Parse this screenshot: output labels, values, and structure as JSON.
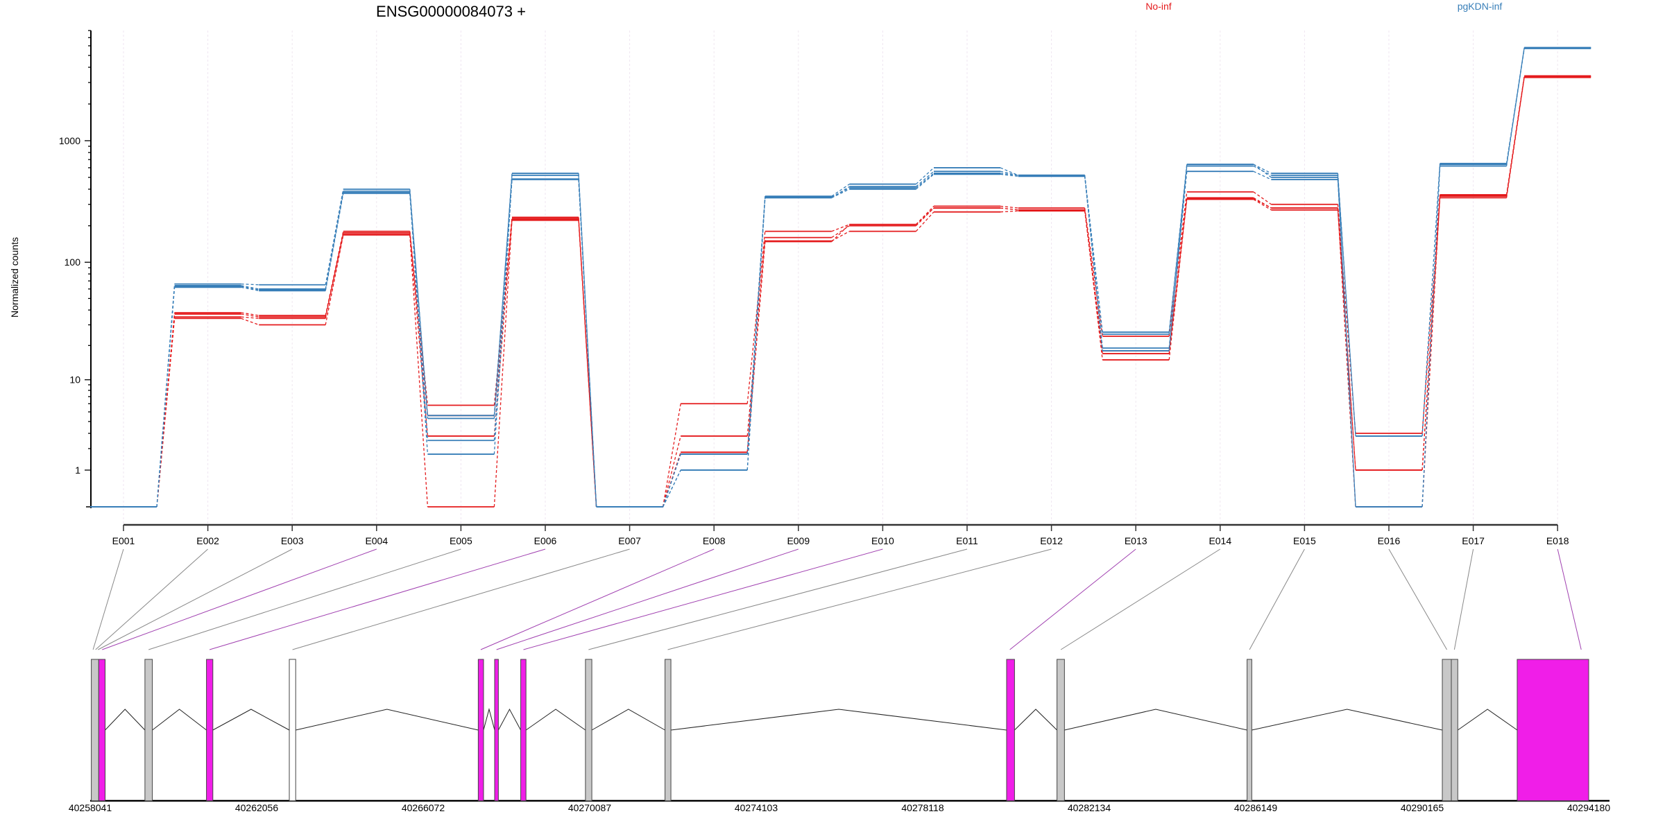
{
  "chart_data": {
    "type": "line",
    "title": "ENSG00000084073 +",
    "xlabel": "",
    "ylabel": "Normalized counts",
    "yscale": "log10(x+1)",
    "ylim": [
      0,
      8000
    ],
    "yticks": [
      1,
      10,
      100,
      1000
    ],
    "legend": {
      "placement": "top-right",
      "entries": [
        {
          "name": "No-inf",
          "color": "#e41a1c"
        },
        {
          "name": "pgKDN-inf",
          "color": "#377eb8"
        }
      ]
    },
    "categories": [
      "E001",
      "E002",
      "E003",
      "E004",
      "E005",
      "E006",
      "E007",
      "E008",
      "E009",
      "E010",
      "E011",
      "E012",
      "E013",
      "E014",
      "E015",
      "E016",
      "E017",
      "E018"
    ],
    "series": [
      {
        "name": "No-inf",
        "color": "#e41a1c",
        "replicates": [
          [
            0,
            38,
            36,
            180,
            5.8,
            235,
            0,
            6,
            180,
            205,
            290,
            280,
            24,
            380,
            300,
            3,
            360,
            3400
          ],
          [
            0,
            37,
            35,
            175,
            4.6,
            230,
            0,
            2.8,
            160,
            200,
            280,
            270,
            18,
            340,
            280,
            1,
            350,
            3350
          ],
          [
            0,
            35,
            34,
            170,
            2.8,
            225,
            0,
            1.8,
            150,
            180,
            260,
            265,
            17,
            330,
            270,
            1,
            340,
            3300
          ],
          [
            0,
            34,
            30,
            168,
            0,
            222,
            0,
            1.8,
            148,
            205,
            280,
            270,
            15,
            335,
            280,
            0,
            355,
            3360
          ]
        ]
      },
      {
        "name": "pgKDN-inf",
        "color": "#377eb8",
        "replicates": [
          [
            0,
            66,
            65,
            400,
            4.3,
            540,
            0,
            1.7,
            350,
            440,
            600,
            520,
            26,
            640,
            540,
            2.8,
            650,
            5800
          ],
          [
            0,
            64,
            60,
            385,
            4.6,
            520,
            0,
            1.7,
            340,
            420,
            560,
            520,
            25,
            620,
            520,
            2.8,
            640,
            5750
          ],
          [
            0,
            62,
            58,
            370,
            2.5,
            480,
            0,
            1.0,
            340,
            400,
            530,
            510,
            19,
            560,
            480,
            0,
            620,
            5800
          ],
          [
            0,
            63,
            59,
            375,
            1.7,
            485,
            0,
            1.0,
            345,
            410,
            540,
            520,
            18,
            640,
            500,
            0,
            640,
            5700
          ]
        ]
      }
    ],
    "gene_model": {
      "axis_labels": [
        "40258041",
        "40262056",
        "40266072",
        "40270087",
        "40274103",
        "40278118",
        "40282134",
        "40286149",
        "40290165",
        "40294180"
      ],
      "range": [
        40258041,
        40294180
      ],
      "exons": [
        {
          "start": 40258068,
          "end": 40258247,
          "type": "normal",
          "bins": [
            "E001",
            "E002",
            "E003"
          ]
        },
        {
          "start": 40258247,
          "end": 40258401,
          "type": "significant",
          "bins": [
            "E004"
          ]
        },
        {
          "start": 40259361,
          "end": 40259540,
          "type": "normal",
          "bins": [
            "E005"
          ]
        },
        {
          "start": 40260845,
          "end": 40260999,
          "type": "significant",
          "bins": [
            "E006"
          ]
        },
        {
          "start": 40262843,
          "end": 40262997,
          "type": "unexpressed",
          "bins": [
            "E007"
          ]
        },
        {
          "start": 40267400,
          "end": 40267527,
          "type": "significant",
          "bins": [
            "E008"
          ]
        },
        {
          "start": 40267795,
          "end": 40267885,
          "type": "significant",
          "bins": [
            "E009"
          ]
        },
        {
          "start": 40268424,
          "end": 40268551,
          "type": "significant",
          "bins": [
            "E010"
          ]
        },
        {
          "start": 40269985,
          "end": 40270139,
          "type": "normal",
          "bins": [
            "E011"
          ]
        },
        {
          "start": 40271904,
          "end": 40272046,
          "type": "normal",
          "bins": [
            "E012"
          ]
        },
        {
          "start": 40280142,
          "end": 40280333,
          "type": "significant",
          "bins": [
            "E013"
          ]
        },
        {
          "start": 40281357,
          "end": 40281537,
          "type": "normal",
          "bins": [
            "E014"
          ]
        },
        {
          "start": 40285941,
          "end": 40286055,
          "type": "normal",
          "bins": [
            "E015"
          ]
        },
        {
          "start": 40290650,
          "end": 40290867,
          "type": "normal",
          "bins": [
            "E016"
          ]
        },
        {
          "start": 40290867,
          "end": 40291023,
          "type": "normal",
          "bins": [
            "E017"
          ]
        },
        {
          "start": 40292456,
          "end": 40294180,
          "type": "significant",
          "bins": [
            "E018"
          ]
        }
      ],
      "bin_anchor_bp": [
        40258110,
        40258170,
        40258230,
        40258330,
        40259450,
        40260920,
        40262920,
        40267460,
        40267840,
        40268490,
        40270060,
        40271970,
        40280220,
        40281450,
        40286000,
        40290760,
        40290940,
        40294000
      ],
      "colors": {
        "normal": "#c8c8c8",
        "significant": "#f01ee8",
        "unexpressed": "#ffffff"
      }
    }
  }
}
